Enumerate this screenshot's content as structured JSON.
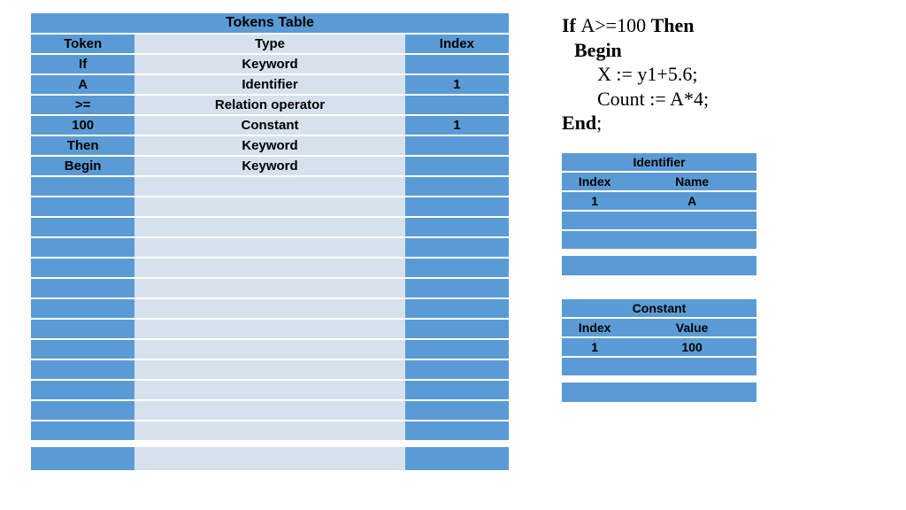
{
  "colors": {
    "blue": "#5b9bd5",
    "light": "#d6e1ee",
    "white": "#ffffff"
  },
  "tokens_table": {
    "title": "Tokens Table",
    "columns": [
      "Token",
      "Type",
      "Index"
    ],
    "rows": [
      {
        "token": "If",
        "type": "Keyword",
        "index": ""
      },
      {
        "token": "A",
        "type": "Identifier",
        "index": "1"
      },
      {
        "token": ">=",
        "type": "Relation operator",
        "index": ""
      },
      {
        "token": "100",
        "type": "Constant",
        "index": "1"
      },
      {
        "token": "Then",
        "type": "Keyword",
        "index": ""
      },
      {
        "token": "Begin",
        "type": "Keyword",
        "index": ""
      }
    ],
    "empty_rows": 13
  },
  "code": {
    "l1a": "If ",
    "l1b": "A>=100 ",
    "l1c": "Then",
    "l2": "Begin",
    "l3": "X := y1+5.6;",
    "l4": "Count := A*4;",
    "l5a": "End",
    "l5b": ";"
  },
  "identifier_table": {
    "title": "Identifier",
    "columns": [
      "Index",
      "Name"
    ],
    "rows": [
      {
        "index": "1",
        "name": "A"
      },
      {
        "index": "",
        "name": ""
      },
      {
        "index": "",
        "name": ""
      }
    ]
  },
  "constant_table": {
    "title": "Constant",
    "columns": [
      "Index",
      "Value"
    ],
    "rows": [
      {
        "index": "1",
        "value": "100"
      },
      {
        "index": "",
        "value": ""
      }
    ]
  }
}
